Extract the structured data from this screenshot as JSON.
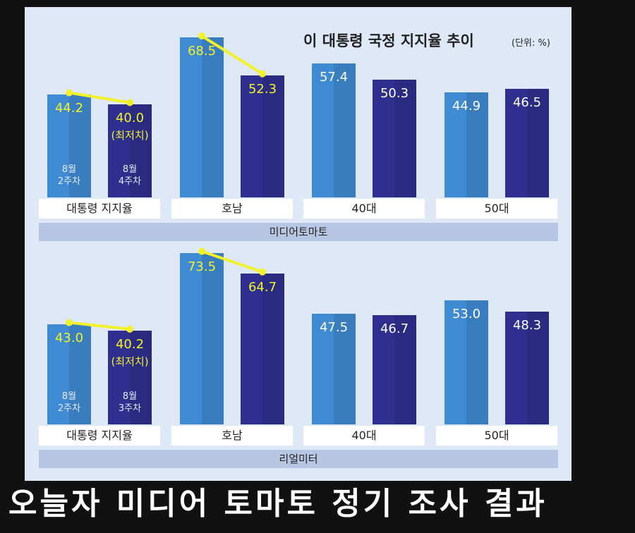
{
  "title": "이 대통령 국정 지지율 추이",
  "unit": "(단위: %)",
  "caption": "오늘자 미디어 토마토 정기 조사 결과",
  "chart_data": [
    {
      "type": "bar",
      "source": "미디어토마토",
      "annotation": "(최저치)",
      "categories": [
        "대통령 지지율",
        "호남",
        "40대",
        "50대"
      ],
      "series": [
        {
          "name": "8월\n2주차",
          "color": "#3f8bd3",
          "values": [
            44.2,
            68.5,
            57.4,
            44.9
          ],
          "value_labels": [
            "44.2",
            "68.5",
            "57.4",
            "44.9"
          ]
        },
        {
          "name": "8월\n4주차",
          "color": "#2e2f8e",
          "values": [
            40.0,
            52.3,
            50.3,
            46.5
          ],
          "value_labels": [
            "40.0",
            "52.3",
            "50.3",
            "46.5"
          ]
        }
      ],
      "ylim": [
        0,
        80
      ],
      "trend_categories": [
        0,
        1
      ],
      "trend_color": "#f2f22c"
    },
    {
      "type": "bar",
      "source": "리얼미터",
      "annotation": "(최저치)",
      "categories": [
        "대통령 지지율",
        "호남",
        "40대",
        "50대"
      ],
      "series": [
        {
          "name": "8월\n2주차",
          "color": "#3f8bd3",
          "values": [
            43.0,
            73.5,
            47.5,
            53.0
          ],
          "value_labels": [
            "43.0",
            "73.5",
            "47.5",
            "53.0"
          ]
        },
        {
          "name": "8월\n3주차",
          "color": "#2e2f8e",
          "values": [
            40.2,
            64.7,
            46.7,
            48.3
          ],
          "value_labels": [
            "40.2",
            "64.7",
            "46.7",
            "48.3"
          ]
        }
      ],
      "ylim": [
        0,
        80
      ],
      "trend_categories": [
        0,
        1
      ],
      "trend_color": "#f2f22c"
    }
  ]
}
